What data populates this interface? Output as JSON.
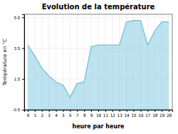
{
  "chart_data": {
    "type": "area",
    "title": "Evolution de la température",
    "xlabel": "heure par heure",
    "ylabel": "Température en °C",
    "x": [
      0,
      1,
      2,
      3,
      4,
      5,
      6,
      7,
      8,
      9,
      10,
      11,
      12,
      13,
      14,
      15,
      16,
      17,
      18,
      19,
      20
    ],
    "values": [
      3.7,
      3.0,
      2.2,
      1.7,
      1.3,
      1.1,
      0.3,
      1.2,
      1.3,
      3.6,
      3.7,
      3.7,
      3.7,
      3.7,
      5.2,
      5.3,
      5.3,
      3.7,
      4.6,
      5.2,
      5.2
    ],
    "xlim": [
      -0.5,
      20.5
    ],
    "ylim": [
      -0.5,
      5.7
    ],
    "xticks": [
      0,
      1,
      2,
      3,
      4,
      5,
      6,
      7,
      8,
      9,
      10,
      11,
      12,
      13,
      14,
      15,
      16,
      17,
      18,
      19,
      20
    ],
    "yticks": [
      -0.5,
      1.5,
      3.5,
      5.5
    ],
    "grid": true,
    "color": "#7ac8e0"
  }
}
